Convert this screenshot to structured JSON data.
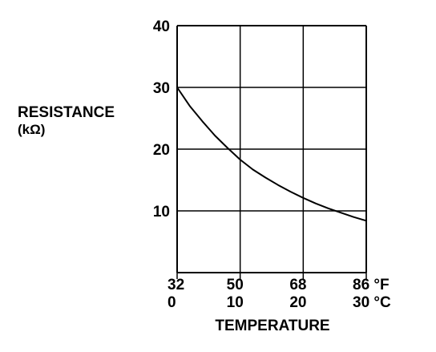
{
  "chart_data": {
    "type": "line",
    "title": "",
    "ylabel": "RESISTANCE",
    "ylabel_unit": "(kΩ)",
    "xlabel": "TEMPERATURE",
    "ylim": [
      0,
      40
    ],
    "yticks": [
      {
        "value": 10,
        "label": "10"
      },
      {
        "value": 20,
        "label": "20"
      },
      {
        "value": 30,
        "label": "30"
      },
      {
        "value": 40,
        "label": "40"
      }
    ],
    "xlim": [
      0,
      30
    ],
    "xticks": [
      {
        "value": 0,
        "label_f": "32",
        "label_c": "0"
      },
      {
        "value": 10,
        "label_f": "50",
        "label_c": "10"
      },
      {
        "value": 20,
        "label_f": "68",
        "label_c": "20"
      },
      {
        "value": 30,
        "label_f": "86 °F",
        "label_c": "30 °C"
      }
    ],
    "grid": true,
    "series": [
      {
        "x": [
          0,
          2,
          4,
          6,
          8,
          10,
          12,
          14,
          16,
          18,
          20,
          22,
          24,
          26,
          28,
          30
        ],
        "values": [
          30.0,
          27.0,
          24.5,
          22.2,
          20.2,
          18.3,
          16.7,
          15.4,
          14.2,
          13.1,
          12.1,
          11.2,
          10.4,
          9.7,
          9.0,
          8.4
        ]
      }
    ],
    "colors": {
      "line": "#000000",
      "grid": "#000000",
      "background": "#ffffff"
    }
  }
}
